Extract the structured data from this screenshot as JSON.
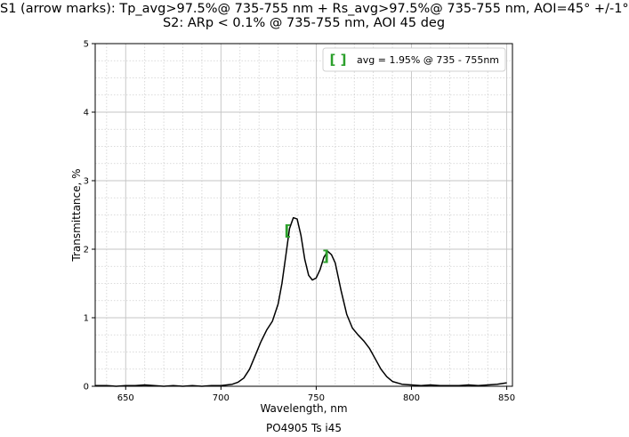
{
  "chart_data": {
    "type": "line",
    "title": "S1 (arrow marks): Tp_avg>97.5%@ 735-755 nm + Rs_avg>97.5%@ 735-755 nm, AOI=45° +/-1°",
    "subtitle": "S2: ARp < 0.1% @ 735-755 nm, AOI 45 deg",
    "xlabel": "Wavelength, nm",
    "ylabel": "Transmittance, %",
    "footer": "PO4905 Ts i45",
    "xlim": [
      634,
      853
    ],
    "ylim": [
      0,
      5
    ],
    "xticks": [
      650,
      700,
      750,
      800,
      850
    ],
    "yticks": [
      0,
      1,
      2,
      3,
      4,
      5
    ],
    "grid": true,
    "line_color": "#000000",
    "marker_color": "#2ca02c",
    "legend": {
      "placement": "top-right",
      "label": "avg = 1.95% @ 735 - 755nm",
      "marker": "[ ]"
    },
    "markers": [
      {
        "x": 735,
        "y": 2.27,
        "glyph": "["
      },
      {
        "x": 755,
        "y": 1.9,
        "glyph": "]"
      }
    ],
    "series": [
      {
        "x": [
          634,
          640,
          645,
          650,
          655,
          660,
          665,
          670,
          675,
          680,
          685,
          690,
          695,
          700,
          703,
          706,
          709,
          712,
          715,
          718,
          721,
          724,
          727,
          730,
          732,
          734,
          736,
          738,
          740,
          742,
          744,
          746,
          748,
          750,
          752,
          754,
          756,
          758,
          760,
          763,
          766,
          769,
          772,
          775,
          778,
          781,
          784,
          787,
          790,
          795,
          800,
          805,
          810,
          815,
          820,
          825,
          830,
          835,
          840,
          845,
          850
        ],
        "values": [
          0.01,
          0.01,
          0.0,
          0.01,
          0.01,
          0.02,
          0.01,
          0.0,
          0.01,
          0.0,
          0.01,
          0.0,
          0.01,
          0.01,
          0.02,
          0.03,
          0.06,
          0.12,
          0.25,
          0.45,
          0.65,
          0.82,
          0.95,
          1.2,
          1.5,
          1.9,
          2.3,
          2.46,
          2.44,
          2.2,
          1.85,
          1.62,
          1.55,
          1.58,
          1.7,
          1.88,
          1.97,
          1.92,
          1.8,
          1.4,
          1.05,
          0.85,
          0.75,
          0.66,
          0.55,
          0.4,
          0.25,
          0.14,
          0.07,
          0.03,
          0.02,
          0.01,
          0.02,
          0.01,
          0.01,
          0.01,
          0.02,
          0.01,
          0.02,
          0.03,
          0.05
        ]
      }
    ]
  }
}
